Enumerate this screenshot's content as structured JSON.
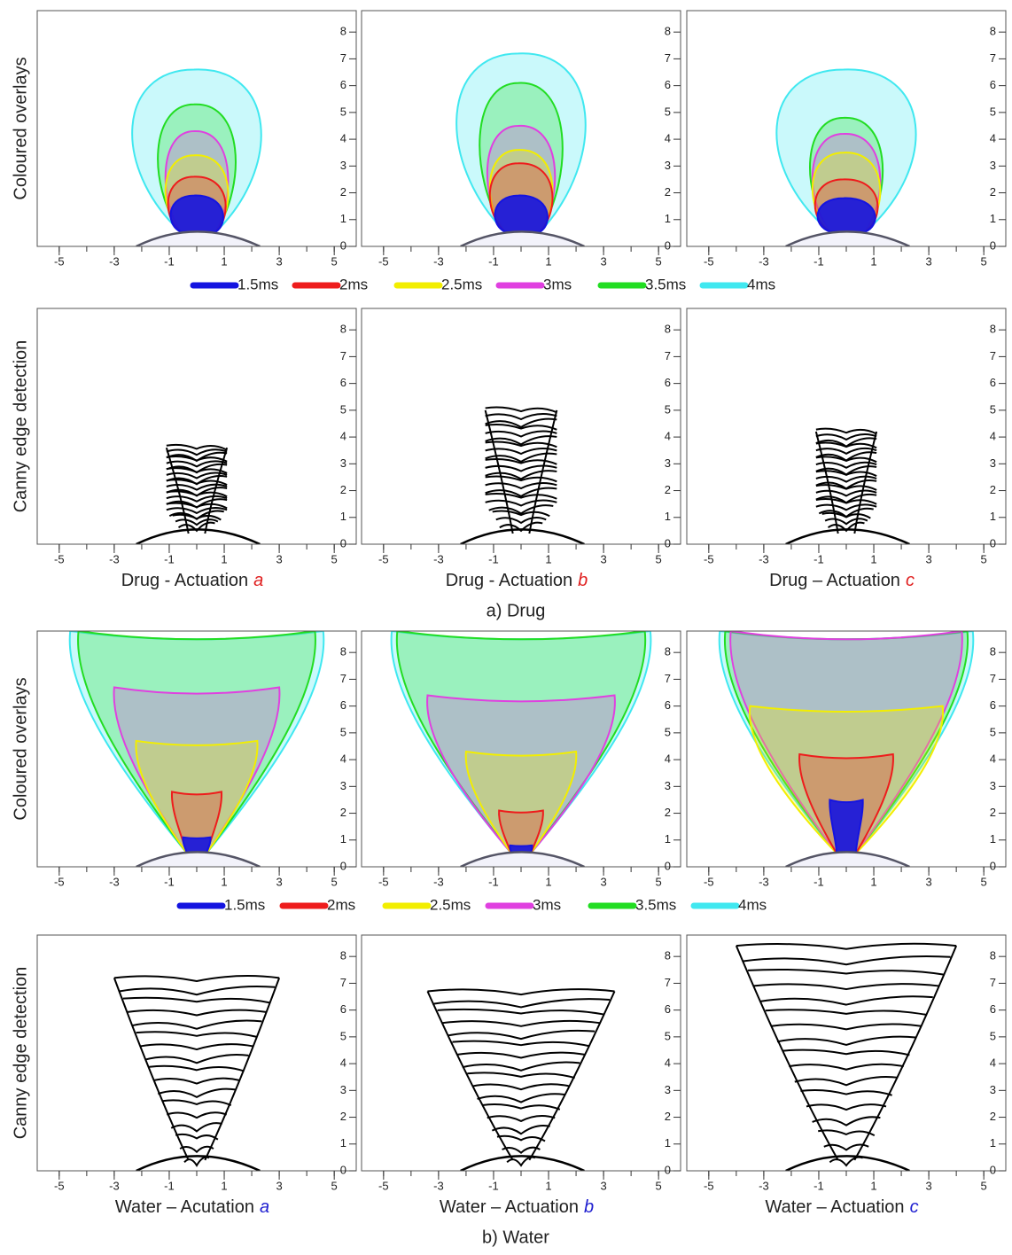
{
  "axes": {
    "xlim": [
      -5.8,
      5.8
    ],
    "ylim": [
      0,
      8.8
    ],
    "xticks": [
      -5,
      -3,
      -1,
      1,
      3,
      5
    ],
    "yticks": [
      0,
      1,
      2,
      3,
      4,
      5,
      6,
      7,
      8
    ]
  },
  "row_labels": [
    "Coloured overlays",
    "Canny edge detection"
  ],
  "legend": [
    {
      "name": "1.5ms",
      "color": "#1414e0"
    },
    {
      "name": "2ms",
      "color": "#ee1c1c"
    },
    {
      "name": "2.5ms",
      "color": "#f2ee00"
    },
    {
      "name": "3ms",
      "color": "#e040e0"
    },
    {
      "name": "3.5ms",
      "color": "#22dd22"
    },
    {
      "name": "4ms",
      "color": "#40e8f0"
    }
  ],
  "sections": [
    {
      "caption": "a) Drug",
      "tag_color": "#e02020",
      "panels": [
        {
          "title": "Drug - Actuation",
          "tag": "a"
        },
        {
          "title": "Drug - Actuation",
          "tag": "b"
        },
        {
          "title": "Drug – Actuation",
          "tag": "c"
        }
      ]
    },
    {
      "caption": "b) Water",
      "tag_color": "#2020d0",
      "panels": [
        {
          "title": "Water – Acutation",
          "tag": "a"
        },
        {
          "title": "Water – Actuation",
          "tag": "b"
        },
        {
          "title": "Water – Actuation",
          "tag": "c"
        }
      ]
    }
  ]
}
